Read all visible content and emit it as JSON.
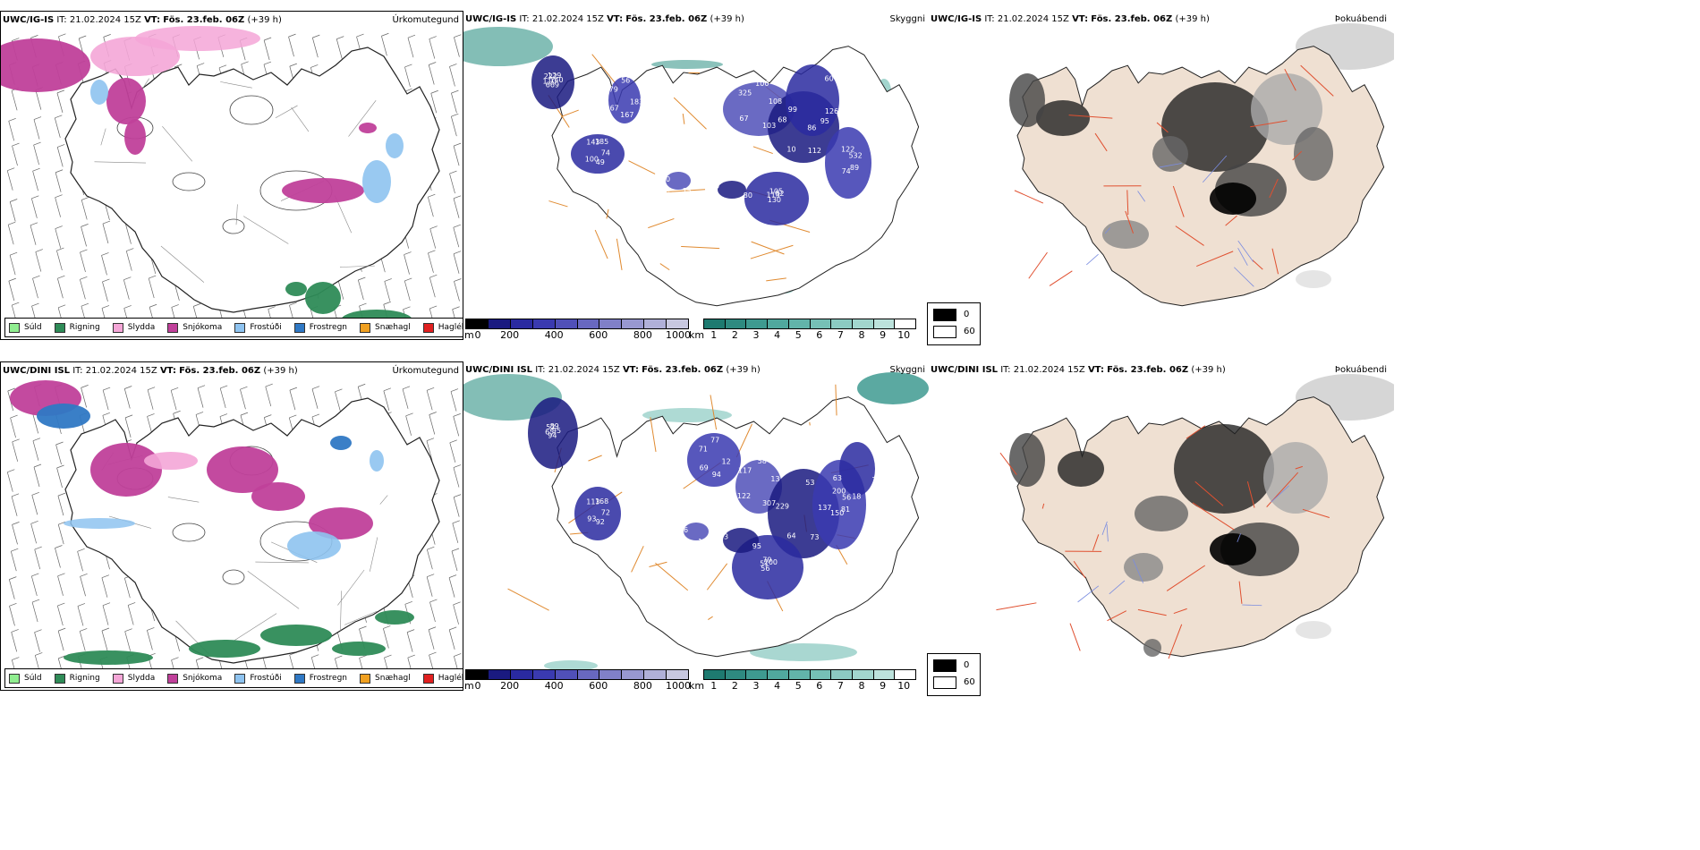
{
  "rows": [
    {
      "model": "UWC/IG-IS",
      "it_label": "IT:",
      "it_value": "21.02.2024 15Z",
      "vt_label": "VT:",
      "vt_value": "Fös. 23.feb. 06Z",
      "lead": "(+39 h)",
      "titles": [
        "Úrkomutegund",
        "Skyggni",
        "Þokuábendi"
      ]
    },
    {
      "model": "UWC/DINI ISL",
      "it_label": "IT:",
      "it_value": "21.02.2024 15Z",
      "vt_label": "VT:",
      "vt_value": "Fös. 23.feb. 06Z",
      "lead": "(+39 h)",
      "titles": [
        "Úrkomutegund",
        "Skyggni",
        "Þokuábendi"
      ]
    }
  ],
  "precip_legend": [
    {
      "label": "Súld",
      "color": "#90ee90"
    },
    {
      "label": "Rigning",
      "color": "#2e8b57"
    },
    {
      "label": "Slydda",
      "color": "#f4a6d7"
    },
    {
      "label": "Snjókoma",
      "color": "#c0409a"
    },
    {
      "label": "Frostúði",
      "color": "#8ec3f0"
    },
    {
      "label": "Frostregn",
      "color": "#2f78c4"
    },
    {
      "label": "Snæhagl",
      "color": "#f0a020"
    },
    {
      "label": "Haglél",
      "color": "#e02020"
    }
  ],
  "elev_scale": {
    "unit": "m",
    "ticks": [
      "0",
      "200",
      "400",
      "600",
      "800",
      "1000"
    ],
    "colors": [
      "#000000",
      "#1a1a80",
      "#2a2aa0",
      "#3a3ab0",
      "#5050b8",
      "#6868c0",
      "#8080c8",
      "#9898d0",
      "#b0b0d8",
      "#c8c8e0"
    ]
  },
  "vis_scale": {
    "unit": "km",
    "ticks": [
      "1",
      "2",
      "3",
      "4",
      "5",
      "6",
      "7",
      "8",
      "9",
      "10"
    ],
    "colors": [
      "#1e7a70",
      "#2e8a80",
      "#3e9a90",
      "#50a89e",
      "#62b4aa",
      "#76c0b6",
      "#8ccac2",
      "#a2d6ce",
      "#bce2dc",
      "#ffffff"
    ]
  },
  "fog_legend": {
    "black": "0",
    "white": "60"
  },
  "vis_numbers_top": [
    "140",
    "100",
    "56",
    "103",
    "68",
    "82",
    "74",
    "85",
    "80",
    "99",
    "129",
    "49",
    "79",
    "108",
    "10",
    "105",
    "89",
    "10",
    "98",
    "86",
    "222",
    "74",
    "67",
    "100",
    "112",
    "113",
    "532",
    "111",
    "108",
    "126",
    "110",
    "185",
    "167",
    "325",
    "95",
    "130",
    "122",
    "15",
    "60",
    "60",
    "669",
    "143",
    "183",
    "67"
  ],
  "vis_numbers_bottom": [
    "95",
    "93",
    "77",
    "307",
    "229",
    "200",
    "150",
    "81",
    "95",
    "63",
    "89",
    "92",
    "71",
    "13",
    "64",
    "79",
    "81",
    "86",
    "18",
    "18",
    "52",
    "72",
    "69",
    "58",
    "73",
    "51",
    "56",
    "84",
    "105",
    "79",
    "65",
    "168",
    "94",
    "117",
    "137",
    "56",
    "200",
    "100",
    "73",
    "63",
    "94",
    "113",
    "12",
    "122",
    "53"
  ]
}
